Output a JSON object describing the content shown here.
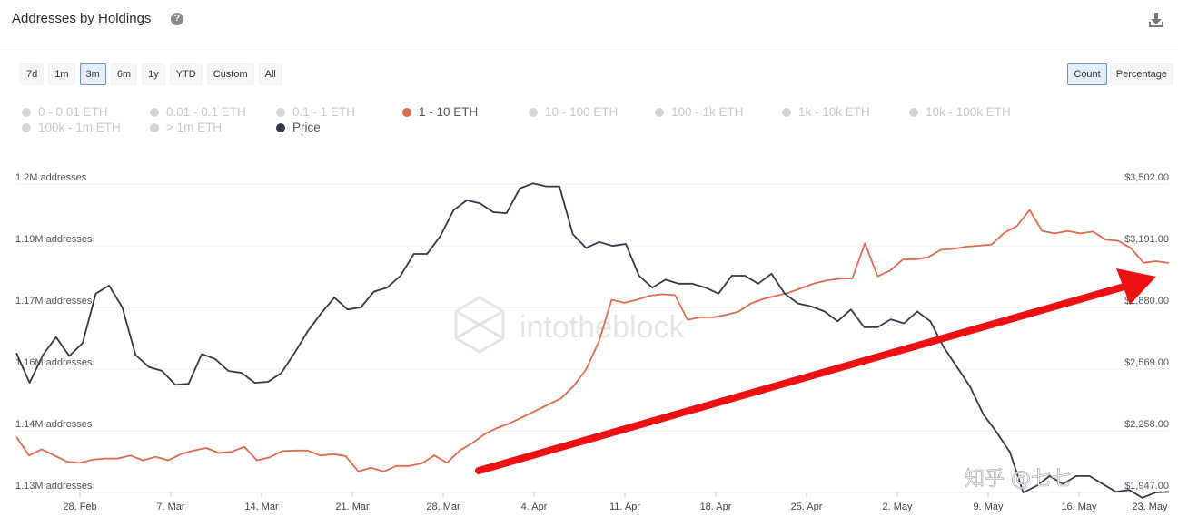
{
  "header": {
    "title": "Addresses by Holdings",
    "help_icon": "question-circle-icon",
    "download_icon": "download-icon"
  },
  "ranges": [
    "7d",
    "1m",
    "3m",
    "6m",
    "1y",
    "YTD",
    "Custom",
    "All"
  ],
  "active_range": "3m",
  "modes": [
    "Count",
    "Percentage"
  ],
  "active_mode": "Count",
  "legend": [
    {
      "label": "0 - 0.01 ETH",
      "active": false,
      "color": "#d5d5d5"
    },
    {
      "label": "0.01 - 0.1 ETH",
      "active": false,
      "color": "#d5d5d5"
    },
    {
      "label": "0.1 - 1 ETH",
      "active": false,
      "color": "#d5d5d5"
    },
    {
      "label": "1 - 10 ETH",
      "active": true,
      "color": "#e06a4e"
    },
    {
      "label": "10 - 100 ETH",
      "active": false,
      "color": "#d5d5d5"
    },
    {
      "label": "100 - 1k ETH",
      "active": false,
      "color": "#d5d5d5"
    },
    {
      "label": "1k - 10k ETH",
      "active": false,
      "color": "#d5d5d5"
    },
    {
      "label": "10k - 100k ETH",
      "active": false,
      "color": "#d5d5d5"
    },
    {
      "label": "100k - 1m ETH",
      "active": false,
      "color": "#d5d5d5"
    },
    {
      "label": "> 1m ETH",
      "active": false,
      "color": "#d5d5d5"
    },
    {
      "label": "Price",
      "active": true,
      "color": "#333a45"
    }
  ],
  "watermark": "intotheblock",
  "overlay_text": "知乎 @七七",
  "chart_data": {
    "type": "line",
    "x_ticks": [
      "28. Feb",
      "7. Mar",
      "14. Mar",
      "21. Mar",
      "28. Mar",
      "4. Apr",
      "11. Apr",
      "18. Apr",
      "25. Apr",
      "2. May",
      "9. May",
      "16. May",
      "23. May"
    ],
    "y_left": {
      "ticks": [
        "1.2M addresses",
        "1.19M addresses",
        "1.17M addresses",
        "1.16M addresses",
        "1.14M addresses",
        "1.13M addresses"
      ],
      "values": [
        1200000,
        1190000,
        1170000,
        1160000,
        1140000,
        1130000
      ]
    },
    "y_right": {
      "ticks": [
        "$3,502.00",
        "$3,191.00",
        "$2,880.00",
        "$2,569.00",
        "$2,258.00",
        "$1,947.00"
      ],
      "values": [
        3502,
        3191,
        2880,
        2569,
        2258,
        1947
      ]
    },
    "series": [
      {
        "name": "1 - 10 ETH",
        "axis": "left",
        "color": "#e06a4e",
        "values": [
          1139000,
          1136000,
          1137000,
          1136000,
          1135000,
          1134800,
          1135300,
          1135500,
          1135500,
          1136000,
          1135200,
          1135800,
          1135200,
          1136200,
          1136800,
          1137200,
          1136400,
          1136600,
          1137400,
          1135200,
          1135700,
          1136700,
          1136800,
          1136800,
          1136000,
          1136200,
          1135900,
          1133400,
          1134000,
          1133400,
          1134300,
          1134300,
          1134700,
          1136000,
          1134800,
          1136800,
          1138000,
          1139500,
          1141000,
          1142500,
          1144500,
          1146500,
          1148500,
          1150500,
          1154500,
          1160000,
          1164500,
          1172500,
          1171500,
          1172500,
          1173800,
          1174300,
          1174000,
          1168000,
          1168400,
          1168400,
          1168800,
          1169300,
          1171300,
          1172800,
          1173800,
          1174800,
          1176300,
          1177800,
          1178800,
          1179300,
          1179400,
          1190400,
          1180100,
          1182000,
          1185600,
          1185600,
          1186300,
          1188700,
          1189000,
          1189700,
          1190000,
          1190200,
          1192100,
          1193200,
          1195800,
          1192400,
          1192000,
          1192400,
          1192000,
          1192300,
          1191000,
          1190800,
          1189200,
          1184500,
          1185000,
          1184400
        ]
      },
      {
        "name": "Price",
        "axis": "right",
        "color": "#333a45",
        "values": [
          2650,
          2500,
          2640,
          2730,
          2635,
          2700,
          2950,
          2990,
          2880,
          2640,
          2580,
          2560,
          2490,
          2495,
          2645,
          2620,
          2560,
          2550,
          2500,
          2505,
          2550,
          2650,
          2760,
          2850,
          2930,
          2870,
          2880,
          2960,
          2980,
          3040,
          3150,
          3150,
          3240,
          3370,
          3420,
          3405,
          3360,
          3355,
          3480,
          3505,
          3490,
          3490,
          3250,
          3180,
          3210,
          3190,
          3200,
          3040,
          2980,
          3020,
          3000,
          3000,
          2980,
          2950,
          3040,
          3040,
          3000,
          3050,
          2950,
          2900,
          2885,
          2860,
          2810,
          2870,
          2780,
          2780,
          2820,
          2800,
          2860,
          2810,
          2680,
          2580,
          2480,
          2340,
          2250,
          2150,
          1947,
          1980,
          2030,
          1990,
          2030,
          2030,
          1990,
          1950,
          1960,
          1920,
          1947,
          1950
        ]
      }
    ],
    "annotation": {
      "type": "red arrow",
      "color": "#ee1111",
      "direction": "up-right",
      "start_date": "30. Mar",
      "end_date": "23. May"
    }
  }
}
